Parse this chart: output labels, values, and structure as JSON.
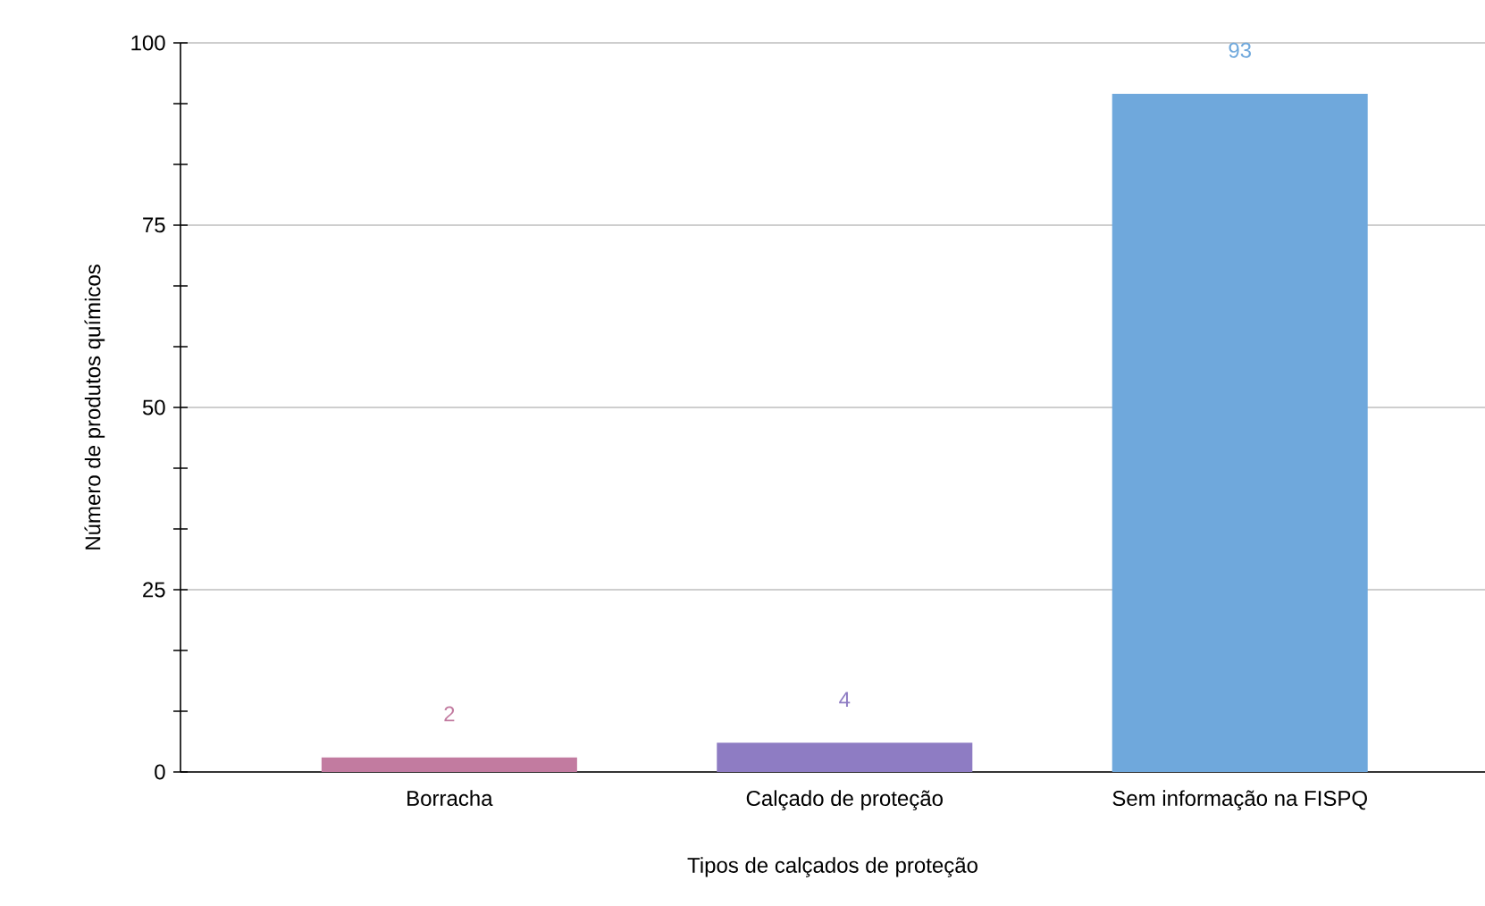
{
  "chart_data": {
    "type": "bar",
    "categories": [
      "Borracha",
      "Calçado de proteção",
      "Sem informação na FISPQ"
    ],
    "values": [
      2,
      4,
      93
    ],
    "colors": [
      "#c27ba0",
      "#8e7cc3",
      "#6fa8dc"
    ],
    "xlabel": "Tipos de calçados de proteção",
    "ylabel": "Número de produtos químicos",
    "ylim": [
      0,
      100
    ],
    "yticks": [
      0,
      25,
      50,
      75,
      100
    ],
    "grid": "y",
    "data_labels": true
  }
}
